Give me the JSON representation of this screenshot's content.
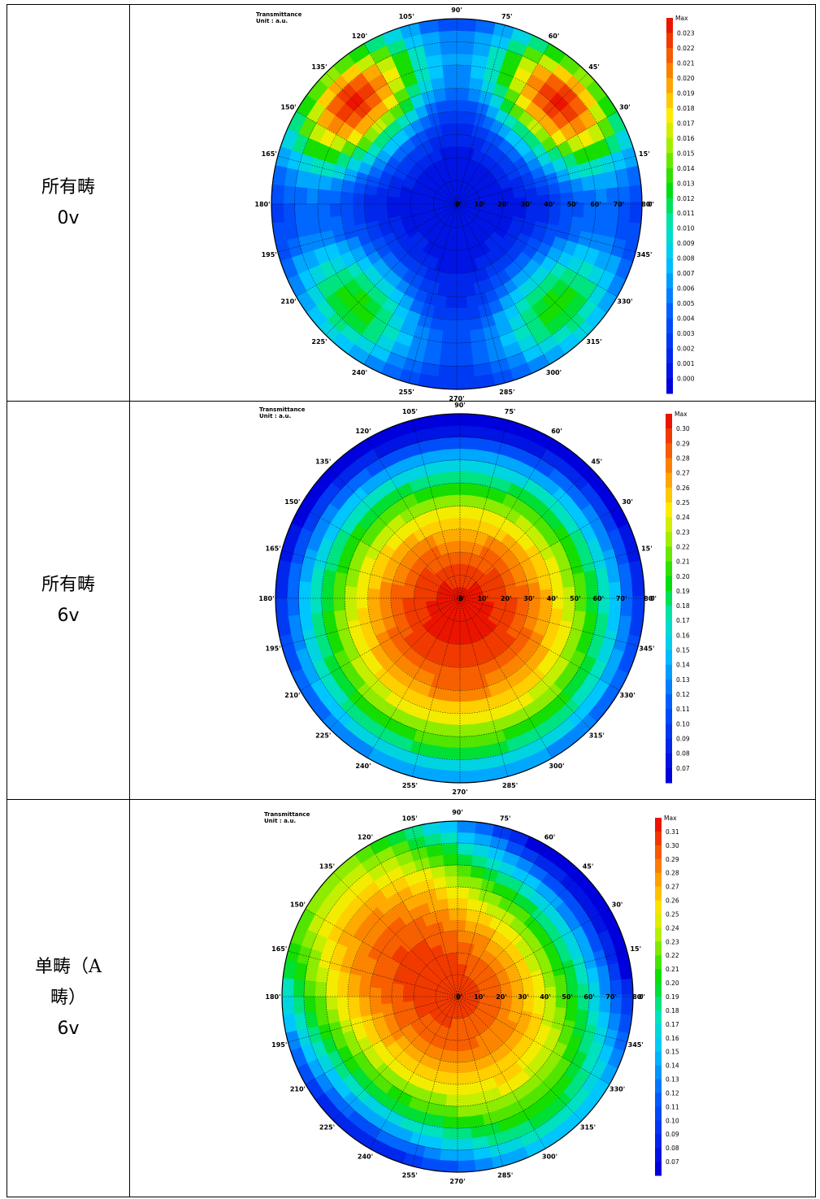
{
  "rows": [
    {
      "label_line1": "所有畴",
      "label_line2": "0v",
      "label_line3": "",
      "chart_data": {
        "type": "heatmap",
        "projection": "polar (conoscopic)",
        "title": "Transmittance",
        "unit": "Unit : a.u.",
        "azimuth_labels": [
          "0'",
          "15'",
          "30'",
          "45'",
          "60'",
          "75'",
          "90'",
          "105'",
          "120'",
          "135'",
          "150'",
          "165'",
          "180'",
          "195'",
          "210'",
          "225'",
          "240'",
          "255'",
          "270'",
          "285'",
          "300'",
          "315'",
          "330'",
          "345'"
        ],
        "radial_labels": [
          "0'",
          "10'",
          "20'",
          "30'",
          "40'",
          "50'",
          "60'",
          "70'",
          "80'"
        ],
        "colorbar": {
          "max_label": "Max",
          "ticks": [
            "0.023",
            "0.022",
            "0.021",
            "0.020",
            "0.019",
            "0.018",
            "0.017",
            "0.016",
            "0.015",
            "0.014",
            "0.013",
            "0.012",
            "0.011",
            "0.010",
            "0.009",
            "0.008",
            "0.007",
            "0.006",
            "0.005",
            "0.004",
            "0.003",
            "0.002",
            "0.001",
            "0.000"
          ],
          "min": 0.0,
          "max": 0.023
        },
        "field": {
          "pattern": "four-lobe",
          "base": 0.001,
          "peaks": [
            {
              "azimuth": 45,
              "polar": 62,
              "value": 0.023
            },
            {
              "azimuth": 135,
              "polar": 62,
              "value": 0.023
            },
            {
              "azimuth": 225,
              "polar": 62,
              "value": 0.013
            },
            {
              "azimuth": 315,
              "polar": 62,
              "value": 0.013
            }
          ]
        }
      }
    },
    {
      "label_line1": "所有畴",
      "label_line2": "6v",
      "label_line3": "",
      "chart_data": {
        "type": "heatmap",
        "projection": "polar (conoscopic)",
        "title": "Transmittance",
        "unit": "Unit : a.u.",
        "azimuth_labels": [
          "0'",
          "15'",
          "30'",
          "45'",
          "60'",
          "75'",
          "90'",
          "105'",
          "120'",
          "135'",
          "150'",
          "165'",
          "180'",
          "195'",
          "210'",
          "225'",
          "240'",
          "255'",
          "270'",
          "285'",
          "300'",
          "315'",
          "330'",
          "345'"
        ],
        "radial_labels": [
          "0'",
          "10'",
          "20'",
          "30'",
          "40'",
          "50'",
          "60'",
          "70'",
          "80'"
        ],
        "colorbar": {
          "max_label": "Max",
          "ticks": [
            "0.30",
            "0.29",
            "0.28",
            "0.27",
            "0.26",
            "0.25",
            "0.24",
            "0.23",
            "0.22",
            "0.21",
            "0.20",
            "0.19",
            "0.18",
            "0.17",
            "0.16",
            "0.15",
            "0.14",
            "0.13",
            "0.12",
            "0.11",
            "0.10",
            "0.09",
            "0.08",
            "0.07"
          ],
          "min": 0.07,
          "max": 0.31
        },
        "field": {
          "pattern": "center-peak",
          "peak_value": 0.31,
          "edge_value": 0.07,
          "peak_offset": {
            "azimuth": 270,
            "polar": 8
          }
        }
      }
    },
    {
      "label_line1": "单畴（A",
      "label_line2": "畴）",
      "label_line3": "6v",
      "chart_data": {
        "type": "heatmap",
        "projection": "polar (conoscopic)",
        "title": "Transmittance",
        "unit": "Unit : a.u.",
        "azimuth_labels": [
          "0'",
          "15'",
          "30'",
          "45'",
          "60'",
          "75'",
          "90'",
          "105'",
          "120'",
          "135'",
          "150'",
          "165'",
          "180'",
          "195'",
          "210'",
          "225'",
          "240'",
          "255'",
          "270'",
          "285'",
          "300'",
          "315'",
          "330'",
          "345'"
        ],
        "radial_labels": [
          "0'",
          "10'",
          "20'",
          "30'",
          "40'",
          "50'",
          "60'",
          "70'",
          "80'"
        ],
        "colorbar": {
          "max_label": "Max",
          "ticks": [
            "0.31",
            "0.30",
            "0.29",
            "0.28",
            "0.27",
            "0.26",
            "0.25",
            "0.24",
            "0.23",
            "0.22",
            "0.21",
            "0.20",
            "0.19",
            "0.18",
            "0.17",
            "0.16",
            "0.15",
            "0.14",
            "0.13",
            "0.12",
            "0.11",
            "0.10",
            "0.09",
            "0.08",
            "0.07"
          ],
          "min": 0.07,
          "max": 0.32
        },
        "field": {
          "pattern": "diagonal-elongated",
          "peak_value": 0.31,
          "edge_value": 0.07,
          "elongation_azimuth": 315,
          "peak_offset": {
            "azimuth": 150,
            "polar": 12
          }
        }
      }
    }
  ]
}
